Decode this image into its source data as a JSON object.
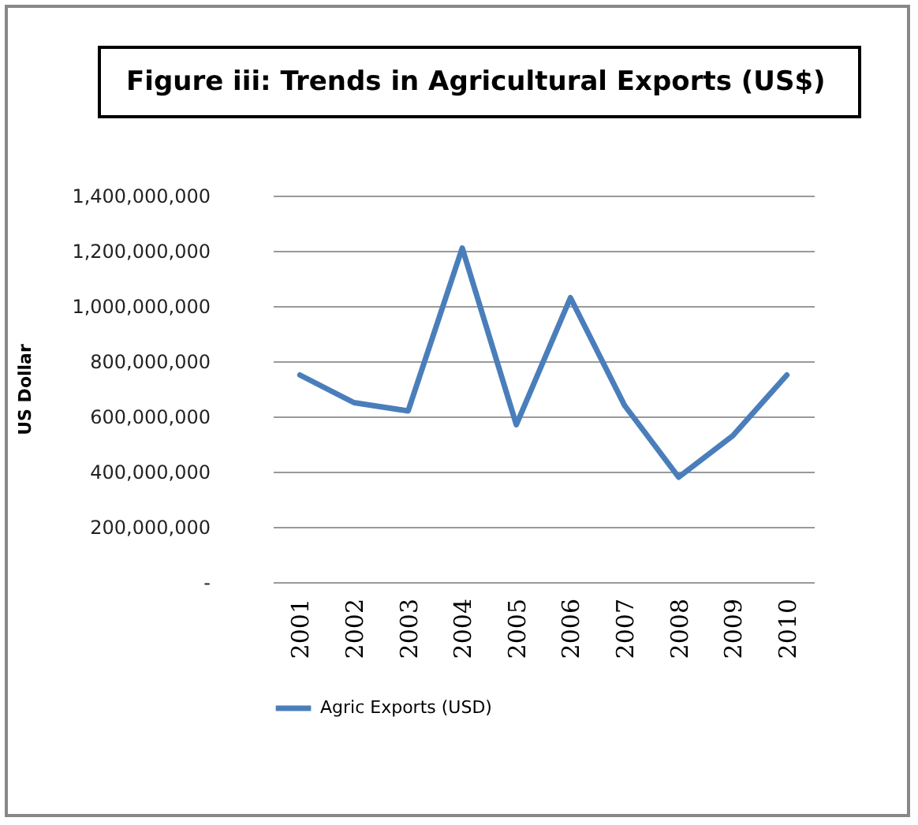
{
  "chart_data": {
    "type": "line",
    "title": "Figure iii: Trends in Agricultural Exports (US$)",
    "ylabel": "US Dollar",
    "categories": [
      "2001",
      "2002",
      "2003",
      "2004",
      "2005",
      "2006",
      "2007",
      "2008",
      "2009",
      "2010"
    ],
    "series": [
      {
        "name": "Agric Exports (USD)",
        "color": "#4a7ebb",
        "values": [
          750000000,
          650000000,
          620000000,
          1210000000,
          570000000,
          1030000000,
          640000000,
          380000000,
          530000000,
          750000000
        ]
      }
    ],
    "ylim": [
      0,
      1400000000
    ],
    "yticks": [
      {
        "value": 0,
        "label": "-"
      },
      {
        "value": 200000000,
        "label": "200,000,000"
      },
      {
        "value": 400000000,
        "label": "400,000,000"
      },
      {
        "value": 600000000,
        "label": "600,000,000"
      },
      {
        "value": 800000000,
        "label": "800,000,000"
      },
      {
        "value": 1000000000,
        "label": "1,000,000,000"
      },
      {
        "value": 1200000000,
        "label": "1,200,000,000"
      },
      {
        "value": 1400000000,
        "label": "1,400,000,000"
      }
    ],
    "grid": "y",
    "legend": "bottom",
    "marker": "none",
    "line_style": "solid"
  }
}
